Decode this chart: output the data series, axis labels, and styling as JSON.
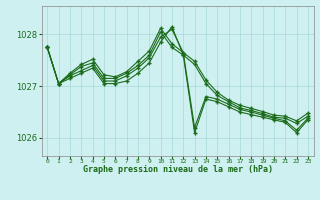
{
  "title": "Graphe pression niveau de la mer (hPa)",
  "background_color": "#cff0f0",
  "grid_color": "#a8d8d8",
  "line_color": "#1a6b1a",
  "marker_color": "#1a6b1a",
  "xlim": [
    -0.5,
    23.5
  ],
  "ylim": [
    1025.65,
    1028.55
  ],
  "yticks": [
    1026,
    1027,
    1028
  ],
  "xtick_labels": [
    "0",
    "1",
    "2",
    "3",
    "4",
    "5",
    "6",
    "7",
    "8",
    "9",
    "10",
    "11",
    "12",
    "13",
    "14",
    "15",
    "16",
    "17",
    "18",
    "19",
    "20",
    "21",
    "22",
    "23"
  ],
  "series": [
    [
      1027.75,
      1027.05,
      1027.15,
      1027.25,
      1027.35,
      1027.05,
      1027.05,
      1027.1,
      1027.25,
      1027.45,
      1027.85,
      1028.15,
      1027.6,
      1026.1,
      1026.75,
      1026.7,
      1026.6,
      1026.5,
      1026.45,
      1026.4,
      1026.35,
      1026.3,
      1026.1,
      1026.35
    ],
    [
      1027.75,
      1027.05,
      1027.2,
      1027.3,
      1027.4,
      1027.1,
      1027.1,
      1027.2,
      1027.35,
      1027.55,
      1027.95,
      1028.1,
      1027.65,
      1026.2,
      1026.8,
      1026.75,
      1026.65,
      1026.55,
      1026.5,
      1026.44,
      1026.38,
      1026.33,
      1026.15,
      1026.38
    ],
    [
      1027.75,
      1027.05,
      1027.22,
      1027.38,
      1027.45,
      1027.15,
      1027.15,
      1027.25,
      1027.4,
      1027.6,
      1028.05,
      1027.75,
      1027.6,
      1027.42,
      1027.05,
      1026.82,
      1026.7,
      1026.58,
      1026.53,
      1026.47,
      1026.4,
      1026.38,
      1026.28,
      1026.42
    ],
    [
      1027.75,
      1027.05,
      1027.25,
      1027.42,
      1027.52,
      1027.22,
      1027.18,
      1027.28,
      1027.48,
      1027.68,
      1028.12,
      1027.82,
      1027.65,
      1027.48,
      1027.12,
      1026.88,
      1026.73,
      1026.63,
      1026.57,
      1026.51,
      1026.44,
      1026.42,
      1026.33,
      1026.48
    ]
  ]
}
